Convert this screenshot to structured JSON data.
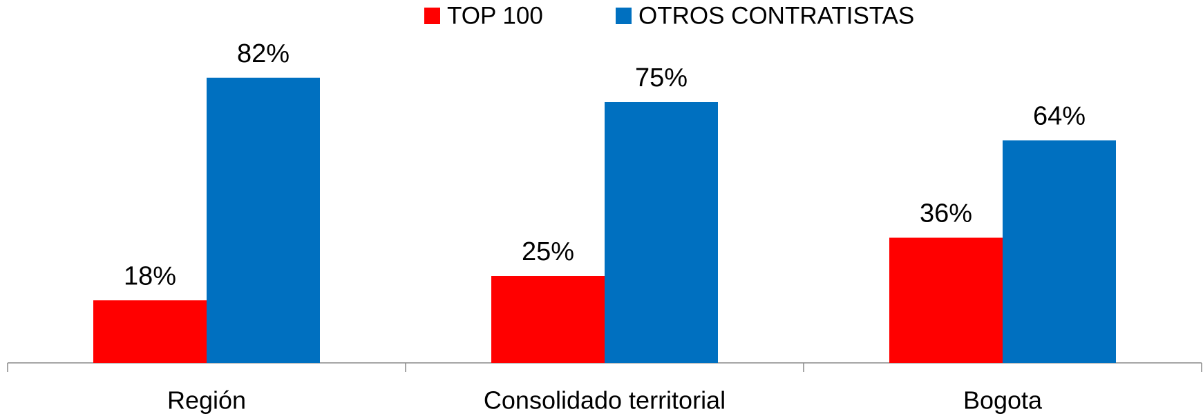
{
  "chart_data": {
    "type": "bar",
    "categories": [
      "Región",
      "Consolidado territorial",
      "Bogota"
    ],
    "series": [
      {
        "name": "TOP 100",
        "color": "#ff0000",
        "values": [
          18,
          25,
          36
        ],
        "value_labels": [
          "18%",
          "25%",
          "36%"
        ]
      },
      {
        "name": "OTROS CONTRATISTAS",
        "color": "#0070c0",
        "values": [
          82,
          75,
          64
        ],
        "value_labels": [
          "82%",
          "75%",
          "64%"
        ]
      }
    ],
    "legend": "top"
  }
}
